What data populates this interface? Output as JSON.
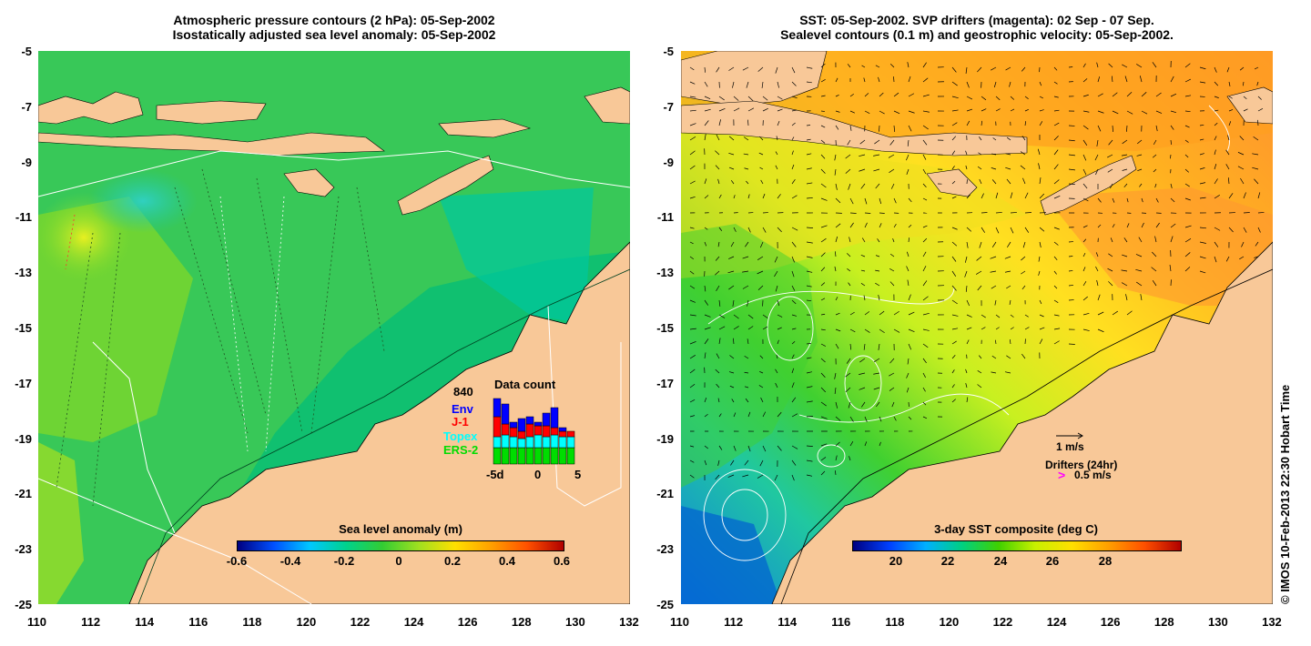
{
  "left_panel": {
    "title_line1": "Atmospheric pressure contours (2 hPa): 05-Sep-2002",
    "title_line2": "Isostatically adjusted sea level anomaly: 05-Sep-2002",
    "colorbar": {
      "title": "Sea level anomaly (m)",
      "ticks": [
        "-0.6",
        "-0.4",
        "-0.2",
        "0",
        "0.2",
        "0.4",
        "0.6"
      ],
      "gradient": [
        "#000080",
        "#0050ff",
        "#00c8ff",
        "#00d28c",
        "#33cc33",
        "#a0e020",
        "#ffe000",
        "#ffa000",
        "#ff5000",
        "#b00000"
      ]
    },
    "data_count": {
      "title": "Data count",
      "total": "840",
      "satellites": [
        {
          "label": "Env",
          "color": "#0000ff"
        },
        {
          "label": "J-1",
          "color": "#ff0000"
        },
        {
          "label": "Topex",
          "color": "#00ffff"
        },
        {
          "label": "ERS-2",
          "color": "#00dd00"
        }
      ],
      "axis_labels": [
        "-5d",
        "0",
        "5"
      ]
    }
  },
  "right_panel": {
    "title_line1": "SST: 05-Sep-2002. SVP drifters (magenta): 02 Sep - 07 Sep.",
    "title_line2": "Sealevel contours (0.1 m) and geostrophic velocity: 05-Sep-2002.",
    "colorbar": {
      "title": "3-day SST composite (deg C)",
      "ticks": [
        "20",
        "22",
        "24",
        "26",
        "28"
      ],
      "gradient": [
        "#000080",
        "#0040ff",
        "#00b0ff",
        "#00d080",
        "#40d000",
        "#c8f000",
        "#ffe000",
        "#ffa000",
        "#ff5000",
        "#b00000"
      ]
    },
    "scale_label": "1 m/s",
    "drifters_label": "Drifters (24hr)",
    "drifters_speed": "0.5 m/s"
  },
  "axes": {
    "x_ticks": [
      "110",
      "112",
      "114",
      "116",
      "118",
      "120",
      "122",
      "124",
      "126",
      "128",
      "130",
      "132"
    ],
    "y_ticks": [
      "-5",
      "-7",
      "-9",
      "-11",
      "-13",
      "-15",
      "-17",
      "-19",
      "-21",
      "-23",
      "-25"
    ]
  },
  "copyright": "© IMOS 10-Feb-2013 22:30 Hobart Time",
  "colors": {
    "land": "#f8c898",
    "ocean_left": "#10c070",
    "ocean_right": "#f0b020"
  }
}
